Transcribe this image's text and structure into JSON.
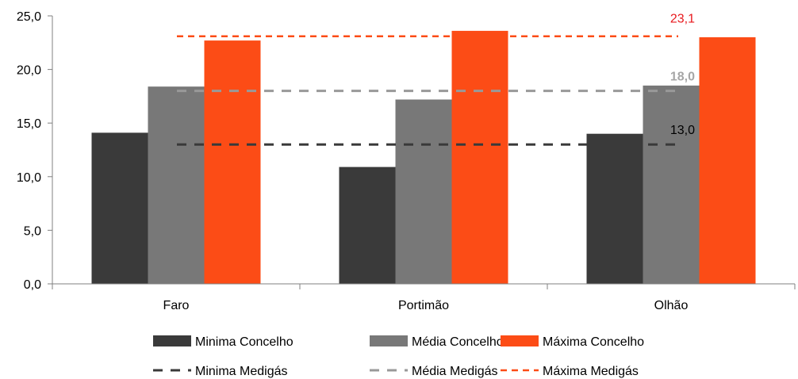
{
  "chart_data": {
    "type": "bar",
    "categories": [
      "Faro",
      "Portimão",
      "Olhão"
    ],
    "series": [
      {
        "name": "Minima Concelho",
        "values": [
          14.1,
          10.9,
          14.0
        ],
        "color": "#3a3a3a"
      },
      {
        "name": "Média Concelho",
        "values": [
          18.4,
          17.2,
          18.5
        ],
        "color": "#787878"
      },
      {
        "name": "Máxima Concelho",
        "values": [
          22.7,
          23.6,
          23.0
        ],
        "color": "#fc4c16"
      }
    ],
    "reference_lines": [
      {
        "name": "Minima Medigás",
        "value": 13.0,
        "label": "13,0",
        "color": "#3a3a3a",
        "label_color": "#000000",
        "bold": false
      },
      {
        "name": "Média Medigás",
        "value": 18.0,
        "label": "18,0",
        "color": "#999999",
        "label_color": "#a6a6a6",
        "bold": true
      },
      {
        "name": "Máxima Medigás",
        "value": 23.1,
        "label": "23,1",
        "color": "#fc4c16",
        "label_color": "#e8191e",
        "bold": false
      }
    ],
    "ylim": [
      0,
      25
    ],
    "yticks": [
      0,
      5,
      10,
      15,
      20,
      25
    ],
    "ytick_labels": [
      "0,0",
      "5,0",
      "10,0",
      "15,0",
      "20,0",
      "25,0"
    ],
    "title": "",
    "xlabel": "",
    "ylabel": "",
    "grid": false,
    "legend_position": "bottom"
  }
}
